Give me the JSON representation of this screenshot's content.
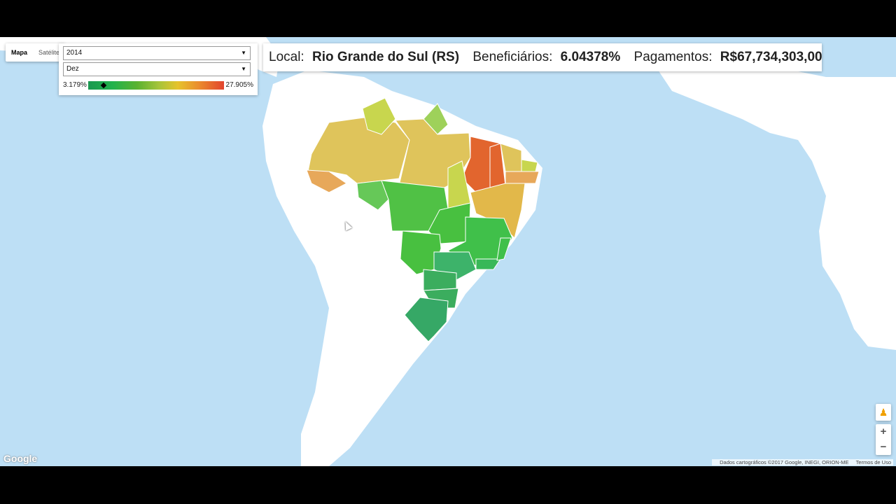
{
  "map_type": {
    "map_label": "Mapa",
    "satellite_label": "Satélite"
  },
  "controls": {
    "year_select": {
      "value": "2014"
    },
    "month_select": {
      "value": "Dez"
    },
    "scale": {
      "min_label": "3.179%",
      "max_label": "27.905%",
      "marker_value_percent": 6.04378
    }
  },
  "info": {
    "local_label": "Local:",
    "local_value": "Rio Grande do Sul (RS)",
    "beneficiarios_label": "Beneficiários:",
    "beneficiarios_value": "6.04378%",
    "pagamentos_label": "Pagamentos:",
    "pagamentos_value": "R$67,734,303,00"
  },
  "zoom": {
    "in_label": "+",
    "out_label": "−"
  },
  "branding": {
    "logo_text": "Google"
  },
  "attribution": {
    "data_text": "Dados cartográficos ©2017 Google, INEGI, ORION-ME",
    "terms_text": "Termos de Uso"
  },
  "colors": {
    "water": "#bddff5",
    "land": "#ffffff",
    "low": "#1a9850",
    "mid_green": "#50c145",
    "yellow": "#dfc45b",
    "orange": "#e7a85a",
    "high": "#e2652e"
  }
}
